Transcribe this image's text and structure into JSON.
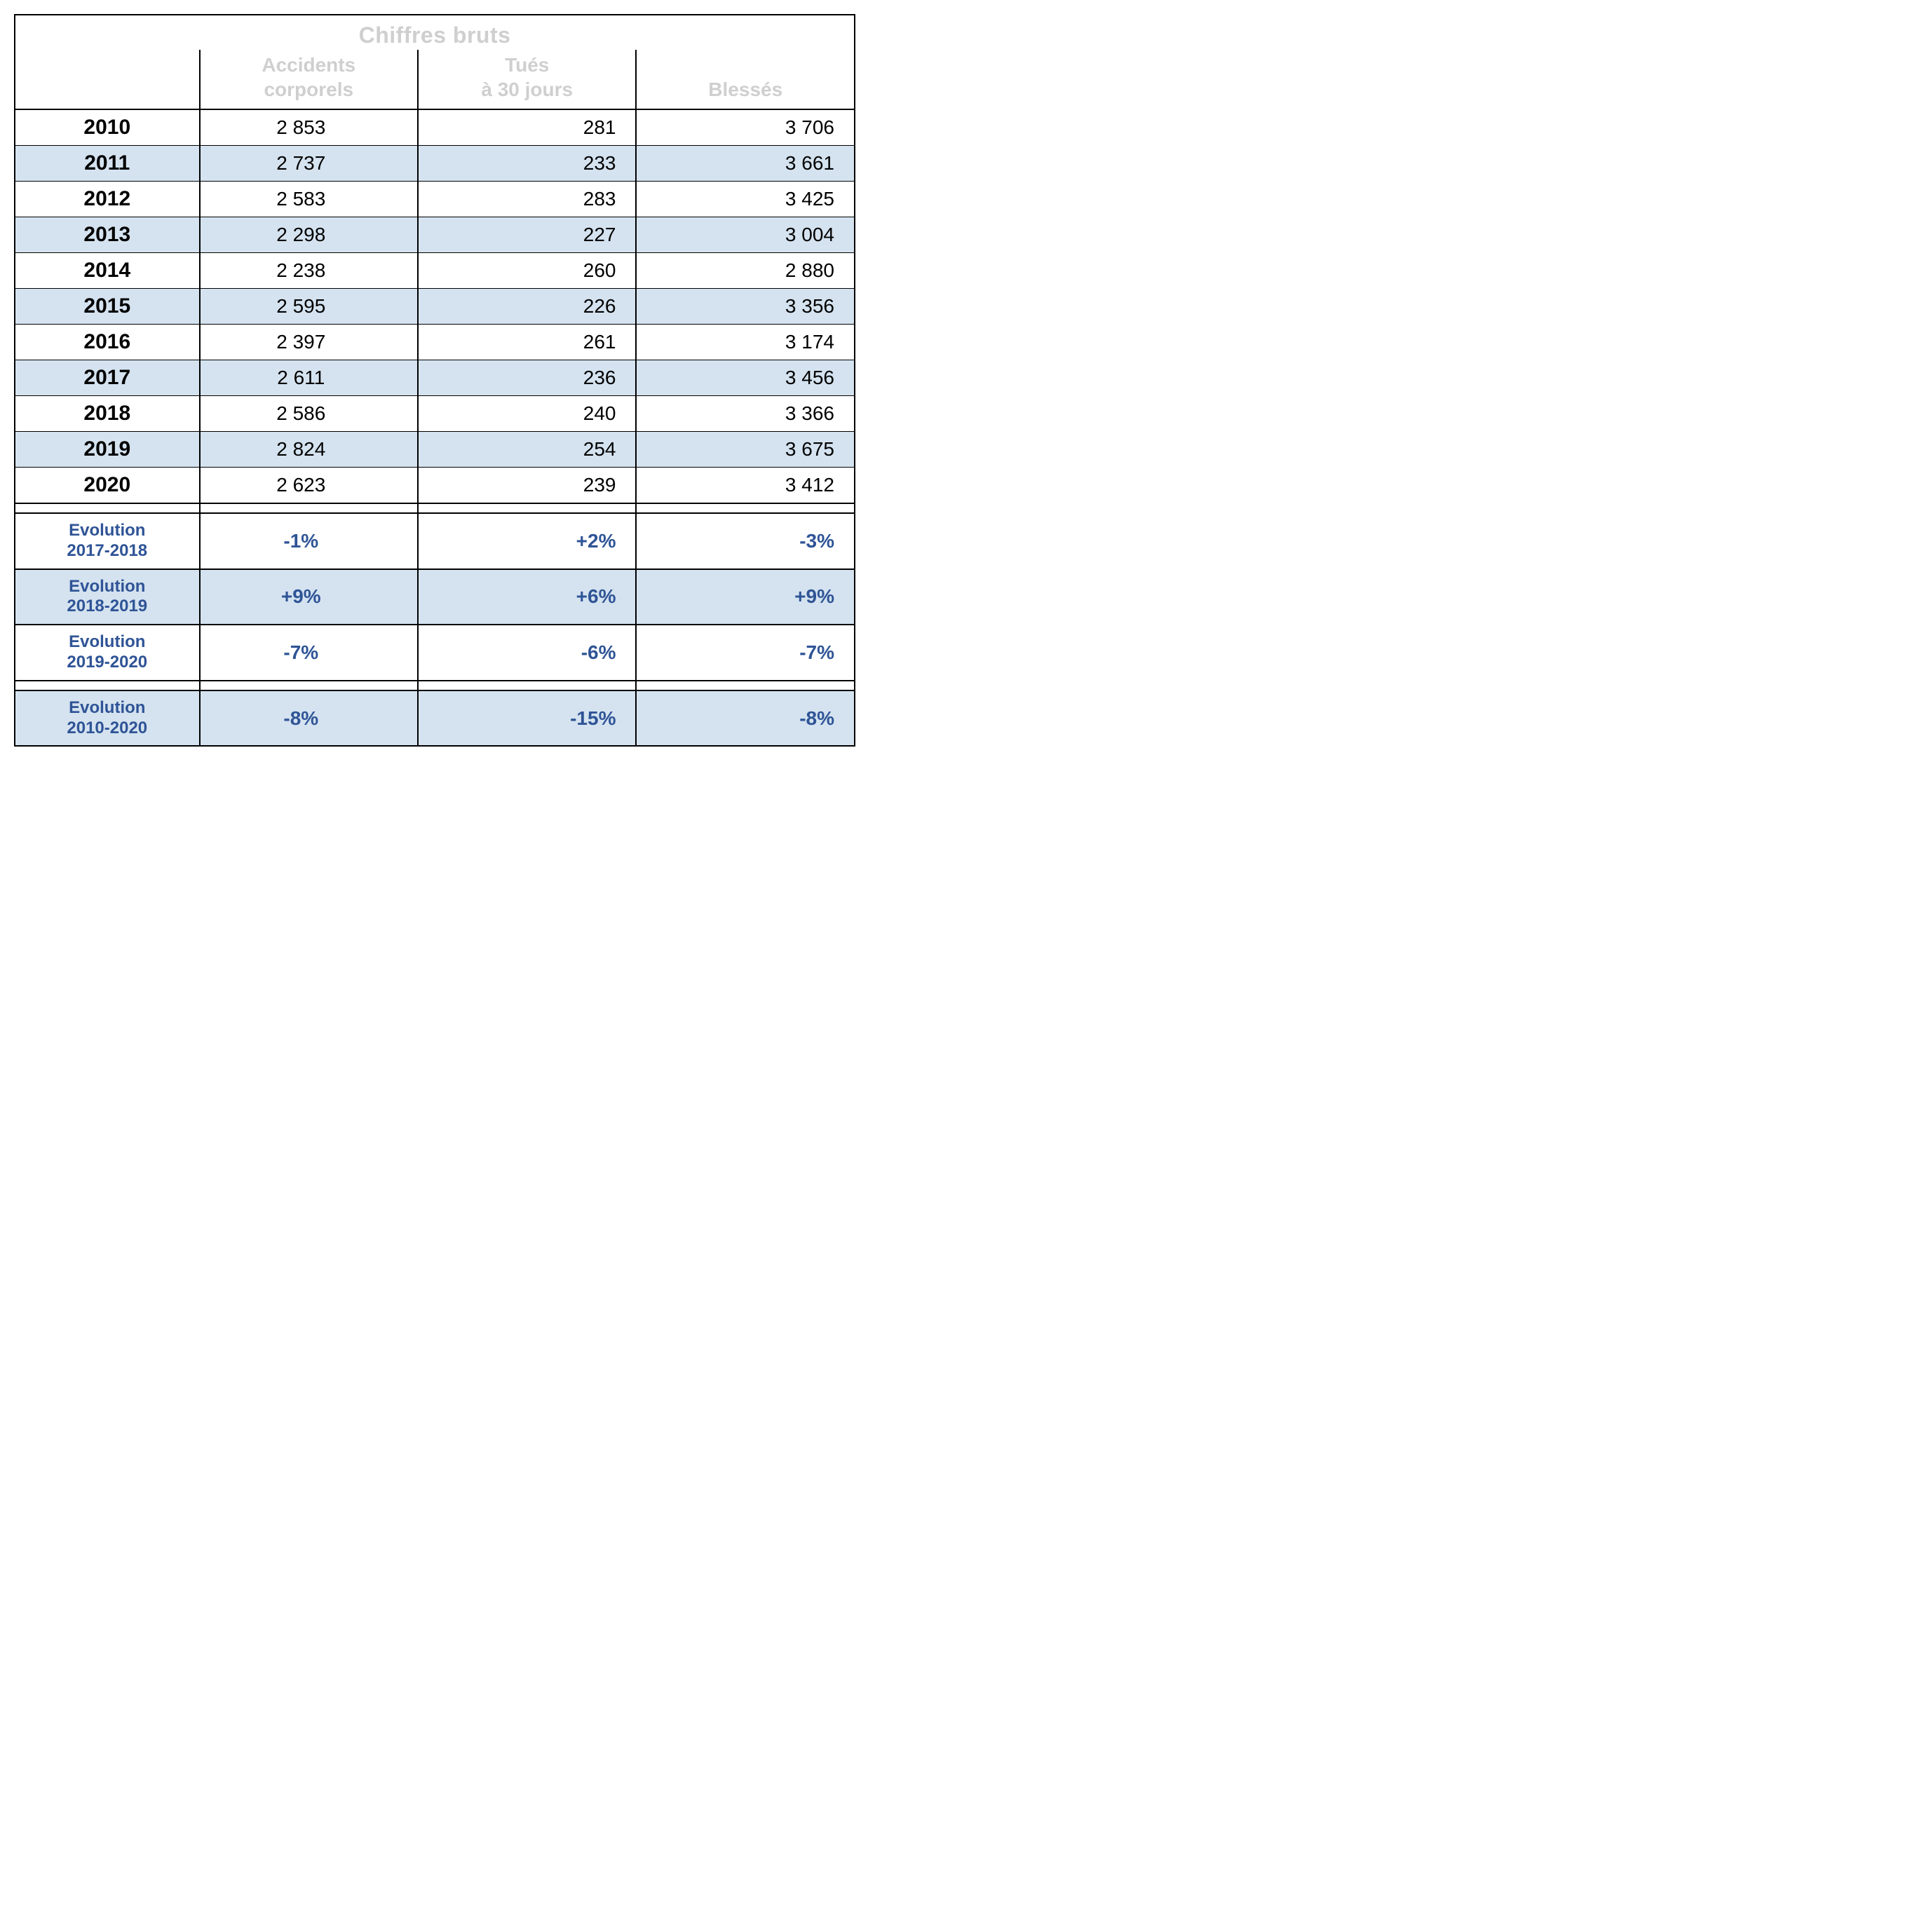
{
  "table": {
    "type": "table",
    "title": "Chiffres bruts",
    "background_color": "#ffffff",
    "stripe_color": "#d5e3f0",
    "border_color": "#000000",
    "evolution_text_color": "#2f5496",
    "header_muted_color": "#cfcfcf",
    "font_family": "Arial",
    "year_fontsize_pt": 22,
    "value_fontsize_pt": 20,
    "evolution_fontsize_pt": 18,
    "columns": [
      {
        "key": "year",
        "label": "",
        "width_pct": 22,
        "align": "center"
      },
      {
        "key": "accidents",
        "label": "Accidents\ncorporels",
        "width_pct": 26,
        "align": "center"
      },
      {
        "key": "tues",
        "label": "Tués\nà 30 jours",
        "width_pct": 26,
        "align": "right"
      },
      {
        "key": "blesses",
        "label": "Blessés",
        "width_pct": 26,
        "align": "right"
      }
    ],
    "rows": [
      {
        "year": "2010",
        "accidents": "2 853",
        "tues": "281",
        "blesses": "3 706",
        "stripe": false
      },
      {
        "year": "2011",
        "accidents": "2 737",
        "tues": "233",
        "blesses": "3 661",
        "stripe": true
      },
      {
        "year": "2012",
        "accidents": "2 583",
        "tues": "283",
        "blesses": "3 425",
        "stripe": false
      },
      {
        "year": "2013",
        "accidents": "2 298",
        "tues": "227",
        "blesses": "3 004",
        "stripe": true
      },
      {
        "year": "2014",
        "accidents": "2 238",
        "tues": "260",
        "blesses": "2 880",
        "stripe": false
      },
      {
        "year": "2015",
        "accidents": "2 595",
        "tues": "226",
        "blesses": "3 356",
        "stripe": true
      },
      {
        "year": "2016",
        "accidents": "2 397",
        "tues": "261",
        "blesses": "3 174",
        "stripe": false
      },
      {
        "year": "2017",
        "accidents": "2 611",
        "tues": "236",
        "blesses": "3 456",
        "stripe": true
      },
      {
        "year": "2018",
        "accidents": "2 586",
        "tues": "240",
        "blesses": "3 366",
        "stripe": false
      },
      {
        "year": "2019",
        "accidents": "2 824",
        "tues": "254",
        "blesses": "3 675",
        "stripe": true
      },
      {
        "year": "2020",
        "accidents": "2 623",
        "tues": "239",
        "blesses": "3 412",
        "stripe": false
      }
    ],
    "evolutions_a": [
      {
        "label": "Evolution\n2017-2018",
        "accidents": "-1%",
        "tues": "+2%",
        "blesses": "-3%",
        "stripe": false
      },
      {
        "label": "Evolution\n2018-2019",
        "accidents": "+9%",
        "tues": "+6%",
        "blesses": "+9%",
        "stripe": true
      },
      {
        "label": "Evolution\n2019-2020",
        "accidents": "-7%",
        "tues": "-6%",
        "blesses": "-7%",
        "stripe": false
      }
    ],
    "evolutions_b": [
      {
        "label": "Evolution\n2010-2020",
        "accidents": "-8%",
        "tues": "-15%",
        "blesses": "-8%",
        "stripe": true
      }
    ]
  }
}
